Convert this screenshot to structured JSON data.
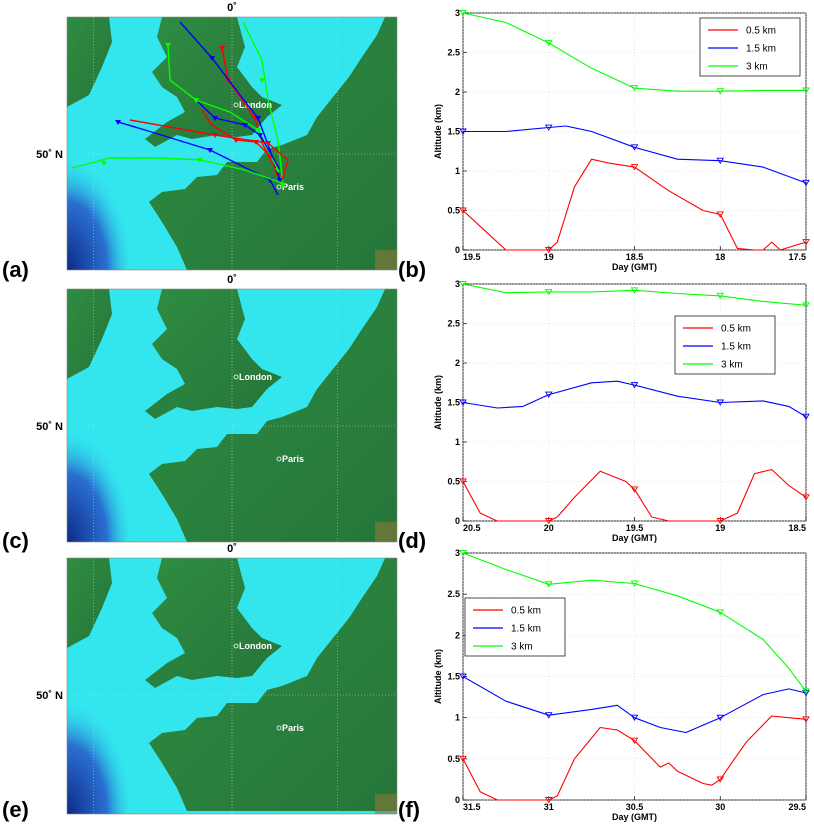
{
  "panel_labels": [
    "(a)",
    "(b)",
    "(c)",
    "(d)",
    "(e)",
    "(f)"
  ],
  "maps": [
    {
      "top_label": "0˚",
      "lat_label": "50˚ N",
      "city_london": "London",
      "city_paris": "Paris"
    },
    {
      "top_label": "0˚",
      "lat_label": "50˚ N",
      "city_london": "London",
      "city_paris": "Paris"
    },
    {
      "top_label": "0˚",
      "lat_label": "50˚ N",
      "city_london": "London",
      "city_paris": "Paris"
    }
  ],
  "colors": {
    "sea": "#33e6ee",
    "deep_sea": "#1a3fa8",
    "land": "#2e8a3e",
    "land_dark": "#1f6a2c",
    "red": "#ff0000",
    "blue": "#0000ff",
    "green": "#00ff00"
  },
  "chart_data": [
    {
      "type": "line",
      "xlabel": "Day (GMT)",
      "ylabel": "Altitude (km)",
      "x_ticks": [
        "19.5",
        "19",
        "18.5",
        "18",
        "17.5"
      ],
      "y_ticks": [
        "0",
        "0.5",
        "1",
        "1.5",
        "2",
        "2.5",
        "3"
      ],
      "xlim": [
        19.5,
        17.5
      ],
      "ylim": [
        0,
        3
      ],
      "legend_position": "top-right",
      "series": [
        {
          "name": "0.5 km",
          "color": "red",
          "x": [
            19.5,
            19.35,
            19.25,
            19.0,
            18.95,
            18.85,
            18.75,
            18.65,
            18.5,
            18.3,
            18.1,
            18.0,
            17.9,
            17.8,
            17.75,
            17.7,
            17.65,
            17.5
          ],
          "y": [
            0.5,
            0.2,
            0.0,
            0.0,
            0.1,
            0.8,
            1.15,
            1.1,
            1.05,
            0.75,
            0.5,
            0.45,
            0.02,
            0.0,
            0.0,
            0.1,
            0.0,
            0.1
          ]
        },
        {
          "name": "1.5 km",
          "color": "blue",
          "x": [
            19.5,
            19.25,
            19.0,
            18.9,
            18.75,
            18.5,
            18.25,
            18.0,
            17.75,
            17.5
          ],
          "y": [
            1.5,
            1.5,
            1.55,
            1.57,
            1.5,
            1.3,
            1.15,
            1.13,
            1.05,
            0.85
          ]
        },
        {
          "name": "3 km",
          "color": "green",
          "x": [
            19.5,
            19.25,
            19.0,
            18.75,
            18.5,
            18.25,
            18.0,
            17.75,
            17.5
          ],
          "y": [
            3.0,
            2.88,
            2.62,
            2.3,
            2.05,
            2.01,
            2.01,
            2.02,
            2.02
          ]
        }
      ]
    },
    {
      "type": "line",
      "xlabel": "Day (GMT)",
      "ylabel": "Altitude (km)",
      "x_ticks": [
        "20.5",
        "20",
        "19.5",
        "19",
        "18.5"
      ],
      "y_ticks": [
        "0",
        "0.5",
        "1",
        "1.5",
        "2",
        "2.5",
        "3"
      ],
      "xlim": [
        20.5,
        18.5
      ],
      "ylim": [
        0,
        3
      ],
      "legend_position": "top-right",
      "series": [
        {
          "name": "0.5 km",
          "color": "red",
          "x": [
            20.5,
            20.4,
            20.3,
            20.0,
            19.95,
            19.85,
            19.7,
            19.55,
            19.5,
            19.4,
            19.3,
            19.0,
            18.9,
            18.8,
            18.7,
            18.6,
            18.5
          ],
          "y": [
            0.5,
            0.1,
            0.0,
            0.0,
            0.05,
            0.3,
            0.63,
            0.5,
            0.4,
            0.05,
            0.0,
            0.0,
            0.1,
            0.6,
            0.65,
            0.45,
            0.3
          ]
        },
        {
          "name": "1.5 km",
          "color": "blue",
          "x": [
            20.5,
            20.3,
            20.15,
            20.0,
            19.75,
            19.6,
            19.5,
            19.25,
            19.0,
            18.75,
            18.6,
            18.5
          ],
          "y": [
            1.5,
            1.43,
            1.45,
            1.6,
            1.75,
            1.77,
            1.72,
            1.58,
            1.5,
            1.52,
            1.45,
            1.32
          ]
        },
        {
          "name": "3 km",
          "color": "green",
          "x": [
            20.5,
            20.25,
            20.0,
            19.75,
            19.5,
            19.25,
            19.0,
            18.75,
            18.5
          ],
          "y": [
            3.0,
            2.89,
            2.9,
            2.9,
            2.92,
            2.88,
            2.85,
            2.78,
            2.73
          ]
        }
      ]
    },
    {
      "type": "line",
      "xlabel": "Day (GMT)",
      "ylabel": "Altitude (km)",
      "x_ticks": [
        "31.5",
        "31",
        "30.5",
        "30",
        "29.5"
      ],
      "y_ticks": [
        "0",
        "0.5",
        "1",
        "1.5",
        "2",
        "2.5",
        "3"
      ],
      "xlim": [
        31.5,
        29.5
      ],
      "ylim": [
        0,
        3
      ],
      "legend_position": "top-left",
      "series": [
        {
          "name": "0.5 km",
          "color": "red",
          "x": [
            31.5,
            31.4,
            31.3,
            31.0,
            30.95,
            30.85,
            30.7,
            30.6,
            30.5,
            30.35,
            30.3,
            30.25,
            30.1,
            30.05,
            30.0,
            29.85,
            29.7,
            29.6,
            29.5
          ],
          "y": [
            0.5,
            0.1,
            0.0,
            0.0,
            0.05,
            0.5,
            0.88,
            0.85,
            0.72,
            0.4,
            0.45,
            0.35,
            0.2,
            0.18,
            0.25,
            0.7,
            1.02,
            1.0,
            0.98
          ]
        },
        {
          "name": "1.5 km",
          "color": "blue",
          "x": [
            31.5,
            31.25,
            31.0,
            30.75,
            30.6,
            30.5,
            30.35,
            30.2,
            30.0,
            29.75,
            29.6,
            29.5
          ],
          "y": [
            1.5,
            1.2,
            1.03,
            1.1,
            1.15,
            1.0,
            0.88,
            0.82,
            1.0,
            1.28,
            1.35,
            1.3
          ]
        },
        {
          "name": "3 km",
          "color": "green",
          "x": [
            31.5,
            31.25,
            31.0,
            30.75,
            30.5,
            30.25,
            30.0,
            29.75,
            29.6,
            29.5
          ],
          "y": [
            3.0,
            2.8,
            2.62,
            2.67,
            2.63,
            2.48,
            2.28,
            1.95,
            1.6,
            1.32
          ]
        }
      ]
    }
  ]
}
